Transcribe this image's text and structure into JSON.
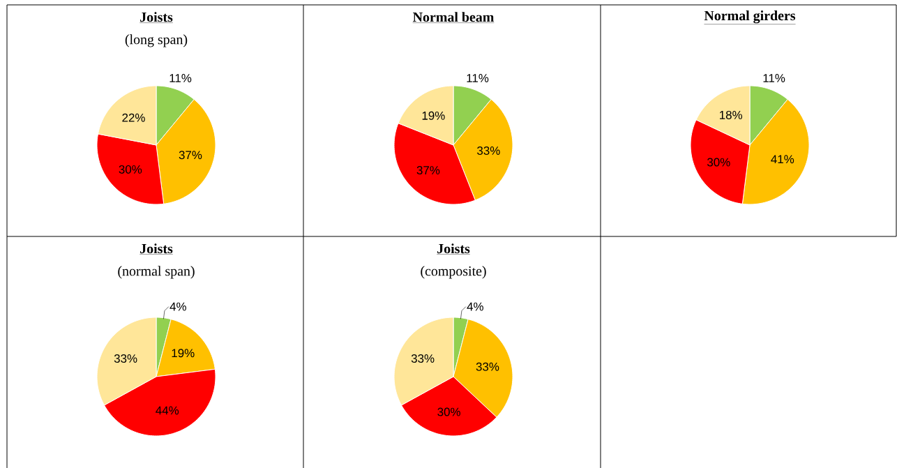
{
  "chart_data": [
    {
      "type": "pie",
      "title": "Joists",
      "subtitle": "(long span)",
      "categories": [
        null,
        null,
        null,
        null
      ],
      "values": [
        11,
        37,
        30,
        22
      ],
      "colors": [
        "#92d050",
        "#ffc000",
        "#ff0000",
        "#ffe699"
      ],
      "value_labels": [
        "11%",
        "37%",
        "30%",
        "22%"
      ]
    },
    {
      "type": "pie",
      "title": "Normal beam",
      "categories": [
        null,
        null,
        null,
        null
      ],
      "values": [
        11,
        33,
        37,
        19
      ],
      "colors": [
        "#92d050",
        "#ffc000",
        "#ff0000",
        "#ffe699"
      ],
      "value_labels": [
        "11%",
        "33%",
        "37%",
        "19%"
      ]
    },
    {
      "type": "pie",
      "title": "Normal girders",
      "categories": [
        null,
        null,
        null,
        null
      ],
      "values": [
        11,
        41,
        30,
        18
      ],
      "colors": [
        "#92d050",
        "#ffc000",
        "#ff0000",
        "#ffe699"
      ],
      "value_labels": [
        "11%",
        "41%",
        "30%",
        "18%"
      ]
    },
    {
      "type": "pie",
      "title": "Joists",
      "subtitle": "(normal span)",
      "categories": [
        null,
        null,
        null,
        null
      ],
      "values": [
        4,
        19,
        44,
        33
      ],
      "colors": [
        "#92d050",
        "#ffc000",
        "#ff0000",
        "#ffe699"
      ],
      "value_labels": [
        "4%",
        "19%",
        "44%",
        "33%"
      ]
    },
    {
      "type": "pie",
      "title": "Joists",
      "subtitle": "(composite)",
      "categories": [
        null,
        null,
        null,
        null
      ],
      "values": [
        4,
        33,
        30,
        33
      ],
      "colors": [
        "#92d050",
        "#ffc000",
        "#ff0000",
        "#ffe699"
      ],
      "value_labels": [
        "4%",
        "33%",
        "30%",
        "33%"
      ]
    }
  ]
}
